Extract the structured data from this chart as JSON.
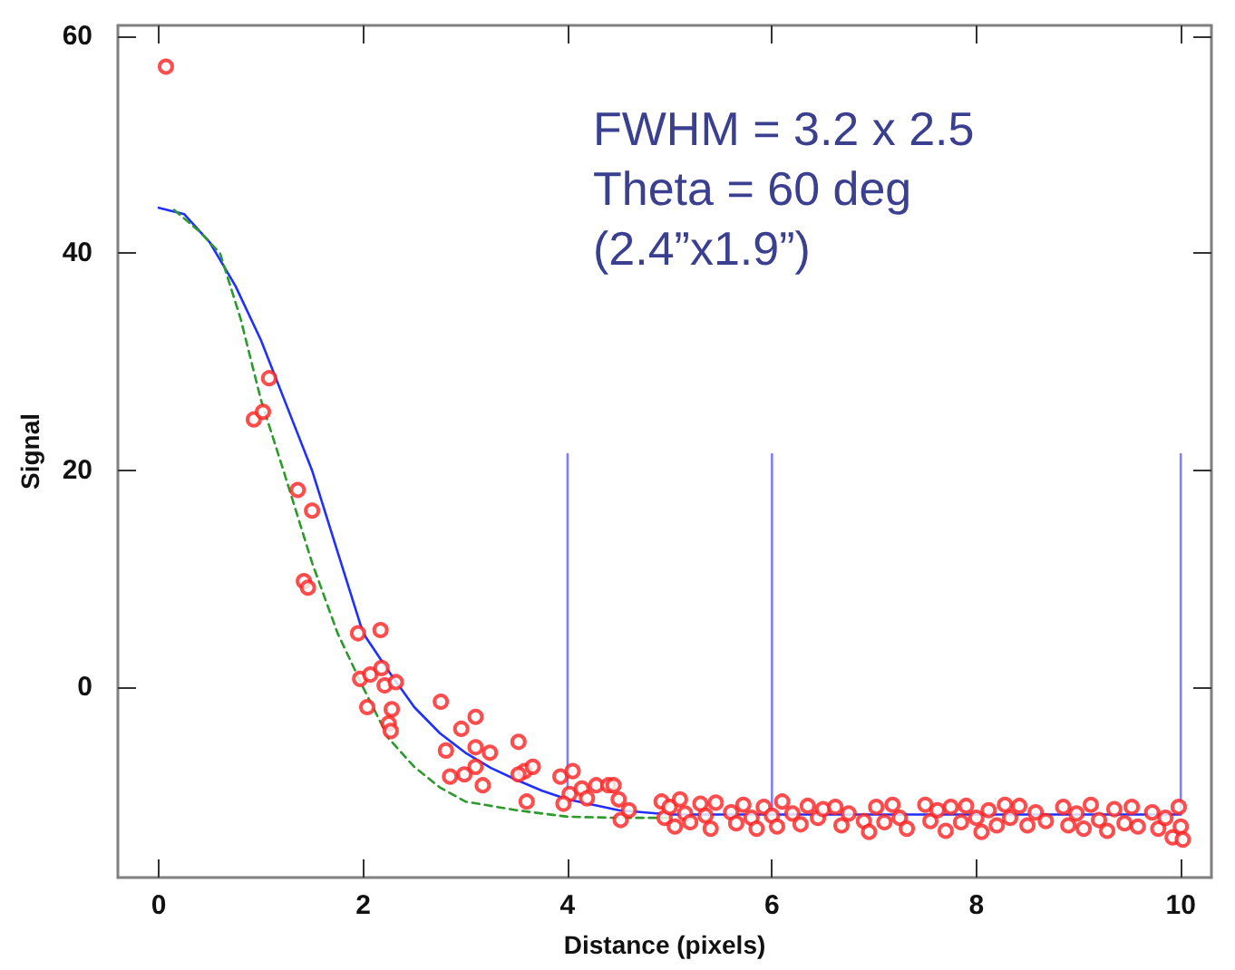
{
  "chart_data": {
    "type": "scatter",
    "xlabel": "Distance (pixels)",
    "ylabel": "Signal",
    "xlim": [
      -0.4,
      10.3
    ],
    "ylim": [
      -17.5,
      61
    ],
    "xticks": [
      0,
      2,
      4,
      6,
      8,
      10
    ],
    "yticks": [
      0,
      20,
      40,
      60
    ],
    "grid": false,
    "annotations": [
      "FWHM = 3.2 x 2.5",
      "Theta = 60 deg",
      "(2.4”x1.9”)"
    ],
    "series": [
      {
        "marker": "circle",
        "color": "#ff2020",
        "x": [
          0.07,
          0.93,
          1.02,
          1.08,
          1.36,
          1.5,
          1.42,
          1.46,
          1.95,
          2.17,
          1.97,
          2.07,
          2.18,
          2.21,
          2.32,
          2.04,
          2.28,
          2.25,
          2.27,
          2.76,
          3.1,
          2.96,
          2.81,
          3.1,
          3.24,
          3.52,
          2.85,
          2.99,
          3.1,
          3.17,
          3.58,
          3.66,
          3.52,
          3.6,
          3.93,
          4.05,
          4.02,
          4.14,
          3.96,
          4.19,
          4.28,
          4.4,
          4.45,
          4.5,
          4.52,
          4.6,
          4.92,
          4.95,
          5.0,
          5.05,
          5.1,
          5.15,
          5.2,
          5.3,
          5.35,
          5.4,
          5.45,
          5.6,
          5.65,
          5.72,
          5.8,
          5.85,
          5.92,
          6.0,
          6.05,
          6.1,
          6.2,
          6.28,
          6.35,
          6.45,
          6.5,
          6.62,
          6.68,
          6.75,
          6.9,
          6.95,
          7.02,
          7.1,
          7.18,
          7.25,
          7.32,
          7.5,
          7.55,
          7.62,
          7.7,
          7.75,
          7.85,
          7.9,
          8.0,
          8.05,
          8.12,
          8.2,
          8.28,
          8.33,
          8.42,
          8.5,
          8.58,
          8.68,
          8.85,
          8.9,
          8.98,
          9.05,
          9.12,
          9.2,
          9.28,
          9.35,
          9.45,
          9.52,
          9.58,
          9.72,
          9.78,
          9.85,
          9.92,
          9.98,
          10.0,
          10.02
        ],
        "values": [
          57.2,
          24.7,
          25.4,
          28.5,
          18.2,
          16.3,
          9.8,
          9.2,
          5,
          5.3,
          0.8,
          1.2,
          1.8,
          0.2,
          0.5,
          -1.8,
          -2,
          -3.3,
          -4,
          -1.3,
          -2.7,
          -3.8,
          -5.8,
          -5.5,
          -6,
          -5,
          -8.2,
          -8,
          -7.3,
          -9,
          -7.7,
          -7.3,
          -8,
          -10.5,
          -8.2,
          -7.7,
          -9.8,
          -9.3,
          -10.7,
          -10.2,
          -9,
          -9,
          -9,
          -10.3,
          -12.2,
          -11.3,
          -10.5,
          -12,
          -11,
          -12.8,
          -10.3,
          -11.6,
          -12.4,
          -10.7,
          -11.8,
          -13,
          -10.6,
          -11.5,
          -12.5,
          -10.8,
          -12,
          -13,
          -11,
          -11.8,
          -12.8,
          -10.5,
          -11.6,
          -12.6,
          -10.9,
          -12,
          -11.2,
          -11,
          -12.7,
          -11.6,
          -12.3,
          -13.3,
          -11,
          -12.4,
          -10.8,
          -12,
          -13,
          -10.8,
          -12.3,
          -11.3,
          -13.2,
          -11,
          -12.4,
          -10.9,
          -12,
          -13.3,
          -11.3,
          -12.7,
          -10.8,
          -12,
          -10.9,
          -12.7,
          -11.5,
          -12.3,
          -11,
          -12.7,
          -11.6,
          -13,
          -10.8,
          -12.2,
          -13.2,
          -11.2,
          -12.5,
          -11,
          -12.8,
          -11.5,
          -13,
          -12,
          -13.8,
          -11,
          -12.8,
          -14
        ]
      },
      {
        "type": "line",
        "marker": "none",
        "color": "#1f2fff",
        "line_style": "solid",
        "x": [
          0,
          0.25,
          0.5,
          0.75,
          1,
          1.25,
          1.5,
          1.75,
          2,
          2.25,
          2.5,
          2.75,
          3,
          3.25,
          3.5,
          3.75,
          4,
          4.5,
          5,
          6,
          8,
          10
        ],
        "values": [
          44.2,
          43.6,
          41,
          37,
          32,
          26,
          20,
          12.5,
          5,
          1.5,
          -1.8,
          -4.2,
          -6,
          -7.4,
          -8.5,
          -9.5,
          -10.3,
          -11.3,
          -11.7,
          -11.7,
          -11.7,
          -11.7
        ]
      },
      {
        "type": "line",
        "marker": "none",
        "color": "#2a9a2a",
        "line_style": "dashed",
        "x": [
          0.15,
          0.4,
          0.6,
          0.8,
          1,
          1.22,
          1.5,
          1.75,
          2,
          2.25,
          2.5,
          2.75,
          3,
          3.5,
          4,
          4.5,
          5
        ],
        "values": [
          44,
          42,
          40,
          34,
          26.5,
          20,
          11.5,
          5,
          0,
          -4.7,
          -7.3,
          -9.2,
          -10.5,
          -11.3,
          -11.9,
          -12,
          -12
        ]
      },
      {
        "type": "line",
        "marker": "none",
        "color": "#7f7fff",
        "line_style": "solid",
        "x": [
          4,
          4,
          5,
          6,
          6,
          8,
          10,
          10
        ],
        "values": [
          21.5,
          -10.7,
          null,
          21.5,
          -11.7,
          null,
          21.5,
          -11.7
        ]
      }
    ]
  }
}
